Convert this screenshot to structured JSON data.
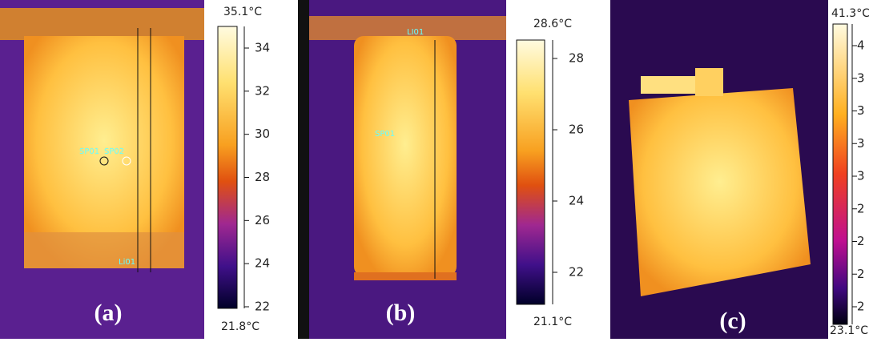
{
  "panels": [
    {
      "label": "(a)",
      "scale": {
        "max": "35.1°C",
        "min": "21.8°C",
        "ticks": [
          "34",
          "32",
          "30",
          "28",
          "26",
          "24",
          "22"
        ]
      },
      "annotations": [
        "SP01",
        "SP02",
        "Li01"
      ]
    },
    {
      "label": "(b)",
      "scale": {
        "max": "28.6°C",
        "min": "21.1°C",
        "ticks": [
          "28",
          "26",
          "24",
          "22"
        ]
      },
      "annotations": [
        "LI01",
        "SP01"
      ]
    },
    {
      "label": "(c)",
      "scale": {
        "max": "41.3°C",
        "min": "23.1°C",
        "ticks": [
          "4",
          "3",
          "3",
          "3",
          "3",
          "2",
          "2",
          "2",
          "2"
        ]
      },
      "annotations": []
    }
  ]
}
